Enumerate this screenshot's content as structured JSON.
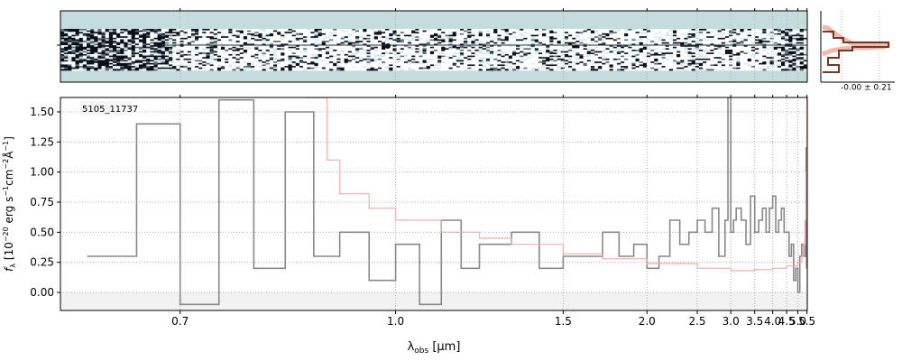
{
  "chart_data": [
    {
      "type": "heatmap",
      "panel": "2d-spectrum",
      "colormap": "bone",
      "background_color": "#c5dcdc"
    },
    {
      "type": "line",
      "panel": "spatial-profile",
      "annotation": "-0.00 ± 0.21",
      "grid": true,
      "line_color": "#6b3a2a",
      "glow_color": "#f4b9a8"
    },
    {
      "type": "line",
      "panel": "1d-spectrum",
      "object_label": "5105_11737",
      "xlabel_main": "λ",
      "xlabel_sub": "obs",
      "xlabel_unit": "[μm]",
      "ylabel": "f_λ [10^-20 erg s^-1 cm^-2 Å^-1]",
      "ylabel_f": "f",
      "ylabel_sub": "λ",
      "ylabel_a": "[10",
      "ylabel_e1": "−20",
      "ylabel_b": " erg s",
      "ylabel_e2": "−1",
      "ylabel_c": "cm",
      "ylabel_e3": "−2",
      "ylabel_d": "Å",
      "ylabel_e4": "−1",
      "ylabel_e": "]",
      "xlim": [
        0.6,
        5.52
      ],
      "ylim": [
        -0.15,
        1.62
      ],
      "x_scale": "reciprocal",
      "grid": true,
      "x_ticks": [
        {
          "value": 0.7,
          "label": "0.7"
        },
        {
          "value": 1.0,
          "label": "1.0"
        },
        {
          "value": 1.5,
          "label": "1.5"
        },
        {
          "value": 2.0,
          "label": "2.0"
        },
        {
          "value": 2.5,
          "label": "2.5"
        },
        {
          "value": 3.0,
          "label": "3.0"
        },
        {
          "value": 3.5,
          "label": "3.5"
        },
        {
          "value": 4.0,
          "label": "4.0"
        },
        {
          "value": 4.5,
          "label": "4.5"
        },
        {
          "value": 5.0,
          "label": "5.0"
        },
        {
          "value": 5.5,
          "label": "5.5"
        }
      ],
      "y_ticks": [
        {
          "value": 0.0,
          "label": "0.00"
        },
        {
          "value": 0.25,
          "label": "0.25"
        },
        {
          "value": 0.5,
          "label": "0.50"
        },
        {
          "value": 0.75,
          "label": "0.75"
        },
        {
          "value": 1.0,
          "label": "1.00"
        },
        {
          "value": 1.25,
          "label": "1.25"
        },
        {
          "value": 1.5,
          "label": "1.50"
        }
      ],
      "series": [
        {
          "role": "flux",
          "color": "#888888",
          "x": [
            0.62,
            0.66,
            0.7,
            0.74,
            0.78,
            0.82,
            0.86,
            0.9,
            0.95,
            1.0,
            1.05,
            1.1,
            1.15,
            1.2,
            1.3,
            1.4,
            1.5,
            1.6,
            1.7,
            1.8,
            1.9,
            2.0,
            2.1,
            2.2,
            2.3,
            2.4,
            2.5,
            2.6,
            2.7,
            2.8,
            2.9,
            2.95,
            3.0,
            3.05,
            3.1,
            3.2,
            3.3,
            3.4,
            3.5,
            3.6,
            3.7,
            3.8,
            3.9,
            4.0,
            4.1,
            4.2,
            4.3,
            4.4,
            4.5,
            4.6,
            4.7,
            4.8,
            4.9,
            5.0,
            5.1,
            5.2,
            5.3,
            5.4,
            5.45,
            5.48
          ],
          "y": [
            0.3,
            1.4,
            -0.1,
            1.6,
            0.2,
            1.5,
            0.3,
            0.5,
            0.1,
            0.4,
            -0.1,
            0.6,
            0.2,
            0.4,
            0.5,
            0.2,
            0.3,
            0.3,
            0.5,
            0.3,
            0.4,
            0.2,
            0.3,
            0.6,
            0.4,
            0.5,
            0.6,
            0.5,
            0.7,
            0.3,
            0.6,
            1.62,
            0.5,
            0.6,
            0.7,
            0.6,
            0.4,
            0.8,
            0.5,
            0.6,
            0.7,
            0.5,
            0.7,
            0.8,
            0.5,
            0.6,
            0.7,
            0.5,
            0.5,
            0.3,
            0.4,
            0.1,
            0.2,
            0.0,
            0.3,
            0.4,
            0.3,
            0.6,
            1.2,
            0.2
          ]
        },
        {
          "role": "uncertainty",
          "color": "#f4a9a8",
          "x": [
            0.85,
            0.88,
            0.9,
            0.95,
            1.0,
            1.1,
            1.2,
            1.3,
            1.5,
            1.7,
            2.0,
            2.5,
            3.0,
            3.5,
            4.0,
            4.5,
            5.0,
            5.2,
            5.3,
            5.4,
            5.45,
            5.5
          ],
          "y": [
            1.62,
            1.1,
            0.82,
            0.7,
            0.6,
            0.5,
            0.45,
            0.4,
            0.32,
            0.28,
            0.24,
            0.2,
            0.18,
            0.19,
            0.2,
            0.22,
            0.25,
            0.3,
            0.4,
            0.6,
            1.0,
            1.62
          ]
        }
      ]
    }
  ]
}
